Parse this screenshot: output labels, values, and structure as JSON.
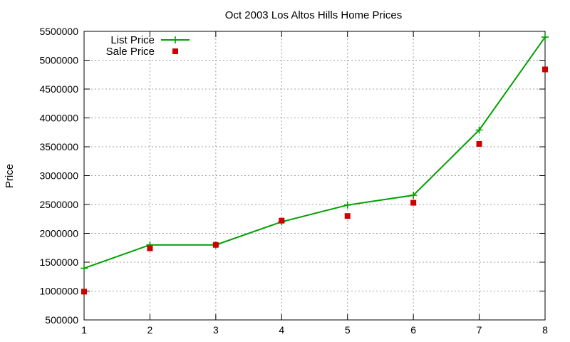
{
  "chart_data": {
    "type": "line",
    "title": "Oct 2003 Los Altos Hills Home Prices",
    "xlabel": "",
    "ylabel": "Price",
    "xlim": [
      1,
      8
    ],
    "ylim": [
      500000,
      5500000
    ],
    "x_ticks": [
      1,
      2,
      3,
      4,
      5,
      6,
      7,
      8
    ],
    "y_ticks": [
      500000,
      1000000,
      1500000,
      2000000,
      2500000,
      3000000,
      3500000,
      4000000,
      4500000,
      5000000,
      5500000
    ],
    "grid": true,
    "legend_position": "top-left",
    "series": [
      {
        "name": "List Price",
        "style": "line-with-plus-markers",
        "color": "#00a000",
        "x": [
          1,
          2,
          3,
          4,
          5,
          6,
          7,
          8
        ],
        "values": [
          1395000,
          1800000,
          1800000,
          2200000,
          2490000,
          2660000,
          3790000,
          5400000
        ]
      },
      {
        "name": "Sale Price",
        "style": "square-markers",
        "color": "#cc0000",
        "x": [
          1,
          2,
          3,
          4,
          5,
          6,
          7,
          8
        ],
        "values": [
          990000,
          1740000,
          1800000,
          2220000,
          2300000,
          2530000,
          3550000,
          4840000
        ]
      }
    ]
  }
}
